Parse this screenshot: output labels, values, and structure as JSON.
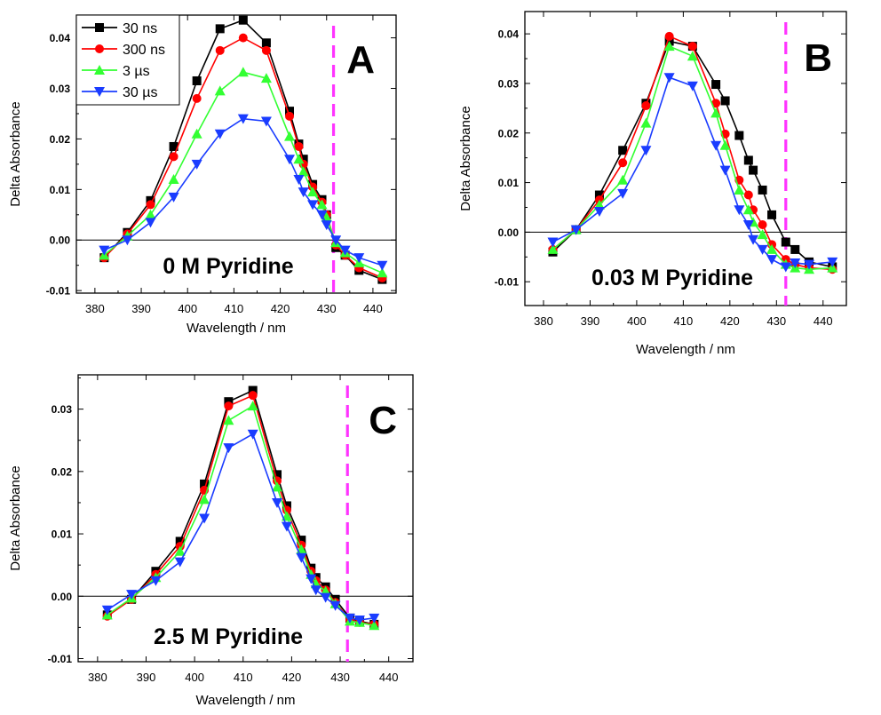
{
  "figure": {
    "legend": [
      {
        "label": "30 ns",
        "color": "#000000",
        "marker": "square"
      },
      {
        "label": "300 ns",
        "color": "#ff0000",
        "marker": "circle"
      },
      {
        "label": "3 µs",
        "color": "#33ff33",
        "marker": "triangle-up"
      },
      {
        "label": "30 µs",
        "color": "#1a3cff",
        "marker": "triangle-down"
      }
    ]
  },
  "chart_data": [
    {
      "type": "line",
      "panel_letter": "A",
      "annotation": "0 M Pyridine",
      "xlabel": "Wavelength / nm",
      "ylabel": "Delta Absorbance",
      "xlim": [
        376,
        445
      ],
      "ylim": [
        -0.0105,
        0.0445
      ],
      "xticks": [
        "380",
        "390",
        "400",
        "410",
        "420",
        "430",
        "440"
      ],
      "yticks": [
        "-0.01",
        "0.00",
        "0.01",
        "0.02",
        "0.03",
        "0.04"
      ],
      "reference_line": {
        "x": 431.5,
        "color": "#ff33ff"
      },
      "zero_line": true,
      "series": [
        {
          "name": "30 ns",
          "color": "#000000",
          "marker": "square",
          "x": [
            382,
            387,
            392,
            397,
            402,
            407,
            412,
            417,
            422,
            424,
            425,
            427,
            429,
            430,
            432,
            434,
            437,
            442
          ],
          "y": [
            -0.0035,
            0.0015,
            0.0078,
            0.0185,
            0.0315,
            0.0418,
            0.0435,
            0.039,
            0.0255,
            0.019,
            0.016,
            0.011,
            0.008,
            0.005,
            -0.0015,
            -0.003,
            -0.006,
            -0.0078
          ]
        },
        {
          "name": "300 ns",
          "color": "#ff0000",
          "marker": "circle",
          "x": [
            382,
            387,
            392,
            397,
            402,
            407,
            412,
            417,
            422,
            424,
            425,
            427,
            429,
            430,
            432,
            434,
            437,
            442
          ],
          "y": [
            -0.0035,
            0.0012,
            0.007,
            0.0165,
            0.028,
            0.0375,
            0.04,
            0.0375,
            0.0245,
            0.0185,
            0.015,
            0.0105,
            0.0075,
            0.005,
            -0.001,
            -0.003,
            -0.0055,
            -0.0075
          ]
        },
        {
          "name": "3 µs",
          "color": "#33ff33",
          "marker": "triangle-up",
          "x": [
            382,
            387,
            392,
            397,
            402,
            407,
            412,
            417,
            422,
            424,
            425,
            427,
            429,
            430,
            432,
            434,
            437,
            442
          ],
          "y": [
            -0.003,
            0.0008,
            0.005,
            0.012,
            0.021,
            0.0295,
            0.0332,
            0.032,
            0.0205,
            0.016,
            0.0135,
            0.0095,
            0.007,
            0.0045,
            -0.0005,
            -0.0025,
            -0.0045,
            -0.0065
          ]
        },
        {
          "name": "30 µs",
          "color": "#1a3cff",
          "marker": "triangle-down",
          "x": [
            382,
            387,
            392,
            397,
            402,
            407,
            412,
            417,
            422,
            424,
            425,
            427,
            429,
            430,
            432,
            434,
            437,
            442
          ],
          "y": [
            -0.002,
            0.0,
            0.0035,
            0.0085,
            0.015,
            0.021,
            0.024,
            0.0235,
            0.016,
            0.012,
            0.0095,
            0.007,
            0.005,
            0.003,
            0.0,
            -0.002,
            -0.0035,
            -0.005
          ]
        }
      ]
    },
    {
      "type": "line",
      "panel_letter": "B",
      "annotation": "0.03 M Pyridine",
      "xlabel": "Wavelength / nm",
      "ylabel": "Delta Absorbance",
      "xlim": [
        376,
        445
      ],
      "ylim": [
        -0.0148,
        0.0445
      ],
      "xticks": [
        "380",
        "390",
        "400",
        "410",
        "420",
        "430",
        "440"
      ],
      "yticks": [
        "-0.01",
        "0.00",
        "0.01",
        "0.02",
        "0.03",
        "0.04"
      ],
      "reference_line": {
        "x": 432,
        "color": "#ff33ff"
      },
      "zero_line": true,
      "series": [
        {
          "name": "30 ns",
          "color": "#000000",
          "marker": "square",
          "x": [
            382,
            387,
            392,
            397,
            402,
            407,
            412,
            417,
            419,
            422,
            424,
            425,
            427,
            429,
            432,
            434,
            437,
            442
          ],
          "y": [
            -0.004,
            0.0005,
            0.0075,
            0.0165,
            0.026,
            0.0385,
            0.0375,
            0.0298,
            0.0265,
            0.0195,
            0.0145,
            0.0125,
            0.0085,
            0.0035,
            -0.002,
            -0.0035,
            -0.006,
            -0.007
          ]
        },
        {
          "name": "300 ns",
          "color": "#ff0000",
          "marker": "circle",
          "x": [
            382,
            387,
            392,
            397,
            402,
            407,
            412,
            417,
            419,
            422,
            424,
            425,
            427,
            429,
            432,
            434,
            437,
            442
          ],
          "y": [
            -0.0035,
            0.0005,
            0.0065,
            0.014,
            0.0255,
            0.0395,
            0.0375,
            0.026,
            0.0198,
            0.0105,
            0.0075,
            0.0045,
            0.0015,
            -0.0025,
            -0.0055,
            -0.0065,
            -0.0072,
            -0.0075
          ]
        },
        {
          "name": "3 µs",
          "color": "#33ff33",
          "marker": "triangle-up",
          "x": [
            382,
            387,
            392,
            397,
            402,
            407,
            412,
            417,
            419,
            422,
            424,
            425,
            427,
            429,
            432,
            434,
            437,
            442
          ],
          "y": [
            -0.0035,
            0.0005,
            0.0055,
            0.0105,
            0.022,
            0.0375,
            0.0355,
            0.024,
            0.0175,
            0.0085,
            0.0045,
            0.002,
            -0.0005,
            -0.0035,
            -0.0065,
            -0.0072,
            -0.0075,
            -0.0072
          ]
        },
        {
          "name": "30 µs",
          "color": "#1a3cff",
          "marker": "triangle-down",
          "x": [
            382,
            387,
            392,
            397,
            402,
            407,
            412,
            417,
            419,
            422,
            424,
            425,
            427,
            429,
            432,
            434,
            437,
            442
          ],
          "y": [
            -0.002,
            0.0005,
            0.0042,
            0.0078,
            0.0165,
            0.0312,
            0.0295,
            0.0175,
            0.0125,
            0.0045,
            0.0015,
            -0.0015,
            -0.0035,
            -0.0055,
            -0.007,
            -0.0062,
            -0.0065,
            -0.006
          ]
        }
      ]
    },
    {
      "type": "line",
      "panel_letter": "C",
      "annotation": "2.5 M Pyridine",
      "xlabel": "Wavelength / nm",
      "ylabel": "Delta Absorbance",
      "xlim": [
        376,
        445
      ],
      "ylim": [
        -0.0105,
        0.0355
      ],
      "xticks": [
        "380",
        "390",
        "400",
        "410",
        "420",
        "430",
        "440"
      ],
      "yticks": [
        "-0.01",
        "0.00",
        "0.01",
        "0.02",
        "0.03"
      ],
      "reference_line": {
        "x": 431.5,
        "color": "#ff33ff"
      },
      "zero_line": true,
      "series": [
        {
          "name": "30 ns",
          "color": "#000000",
          "marker": "square",
          "x": [
            382,
            387,
            392,
            397,
            402,
            407,
            412,
            417,
            419,
            422,
            424,
            425,
            427,
            429,
            432,
            434,
            437
          ],
          "y": [
            -0.003,
            -0.0005,
            0.004,
            0.0088,
            0.018,
            0.0312,
            0.033,
            0.0195,
            0.0145,
            0.009,
            0.0045,
            0.003,
            0.0015,
            -0.0005,
            -0.0035,
            -0.004,
            -0.0045
          ]
        },
        {
          "name": "300 ns",
          "color": "#ff0000",
          "marker": "circle",
          "x": [
            382,
            387,
            392,
            397,
            402,
            407,
            412,
            417,
            419,
            422,
            424,
            425,
            427,
            429,
            432,
            434,
            437
          ],
          "y": [
            -0.0032,
            -0.0005,
            0.0035,
            0.008,
            0.017,
            0.0305,
            0.0322,
            0.0185,
            0.0138,
            0.0082,
            0.004,
            0.0025,
            0.001,
            -0.001,
            -0.0038,
            -0.0042,
            -0.0045
          ]
        },
        {
          "name": "3 µs",
          "color": "#33ff33",
          "marker": "triangle-up",
          "x": [
            382,
            387,
            392,
            397,
            402,
            407,
            412,
            417,
            419,
            422,
            424,
            425,
            427,
            429,
            432,
            434,
            437
          ],
          "y": [
            -0.003,
            -0.0003,
            0.003,
            0.0072,
            0.0155,
            0.0282,
            0.0305,
            0.0175,
            0.0128,
            0.0075,
            0.0035,
            0.002,
            0.0008,
            -0.0012,
            -0.004,
            -0.0042,
            -0.0047
          ]
        },
        {
          "name": "30 µs",
          "color": "#1a3cff",
          "marker": "triangle-down",
          "x": [
            382,
            387,
            392,
            397,
            402,
            407,
            412,
            417,
            419,
            422,
            424,
            425,
            427,
            429,
            432,
            434,
            437
          ],
          "y": [
            -0.0022,
            0.0003,
            0.0025,
            0.0055,
            0.0125,
            0.0238,
            0.026,
            0.015,
            0.0112,
            0.0062,
            0.0028,
            0.001,
            -0.0002,
            -0.0015,
            -0.0035,
            -0.0038,
            -0.0035
          ]
        }
      ]
    }
  ]
}
